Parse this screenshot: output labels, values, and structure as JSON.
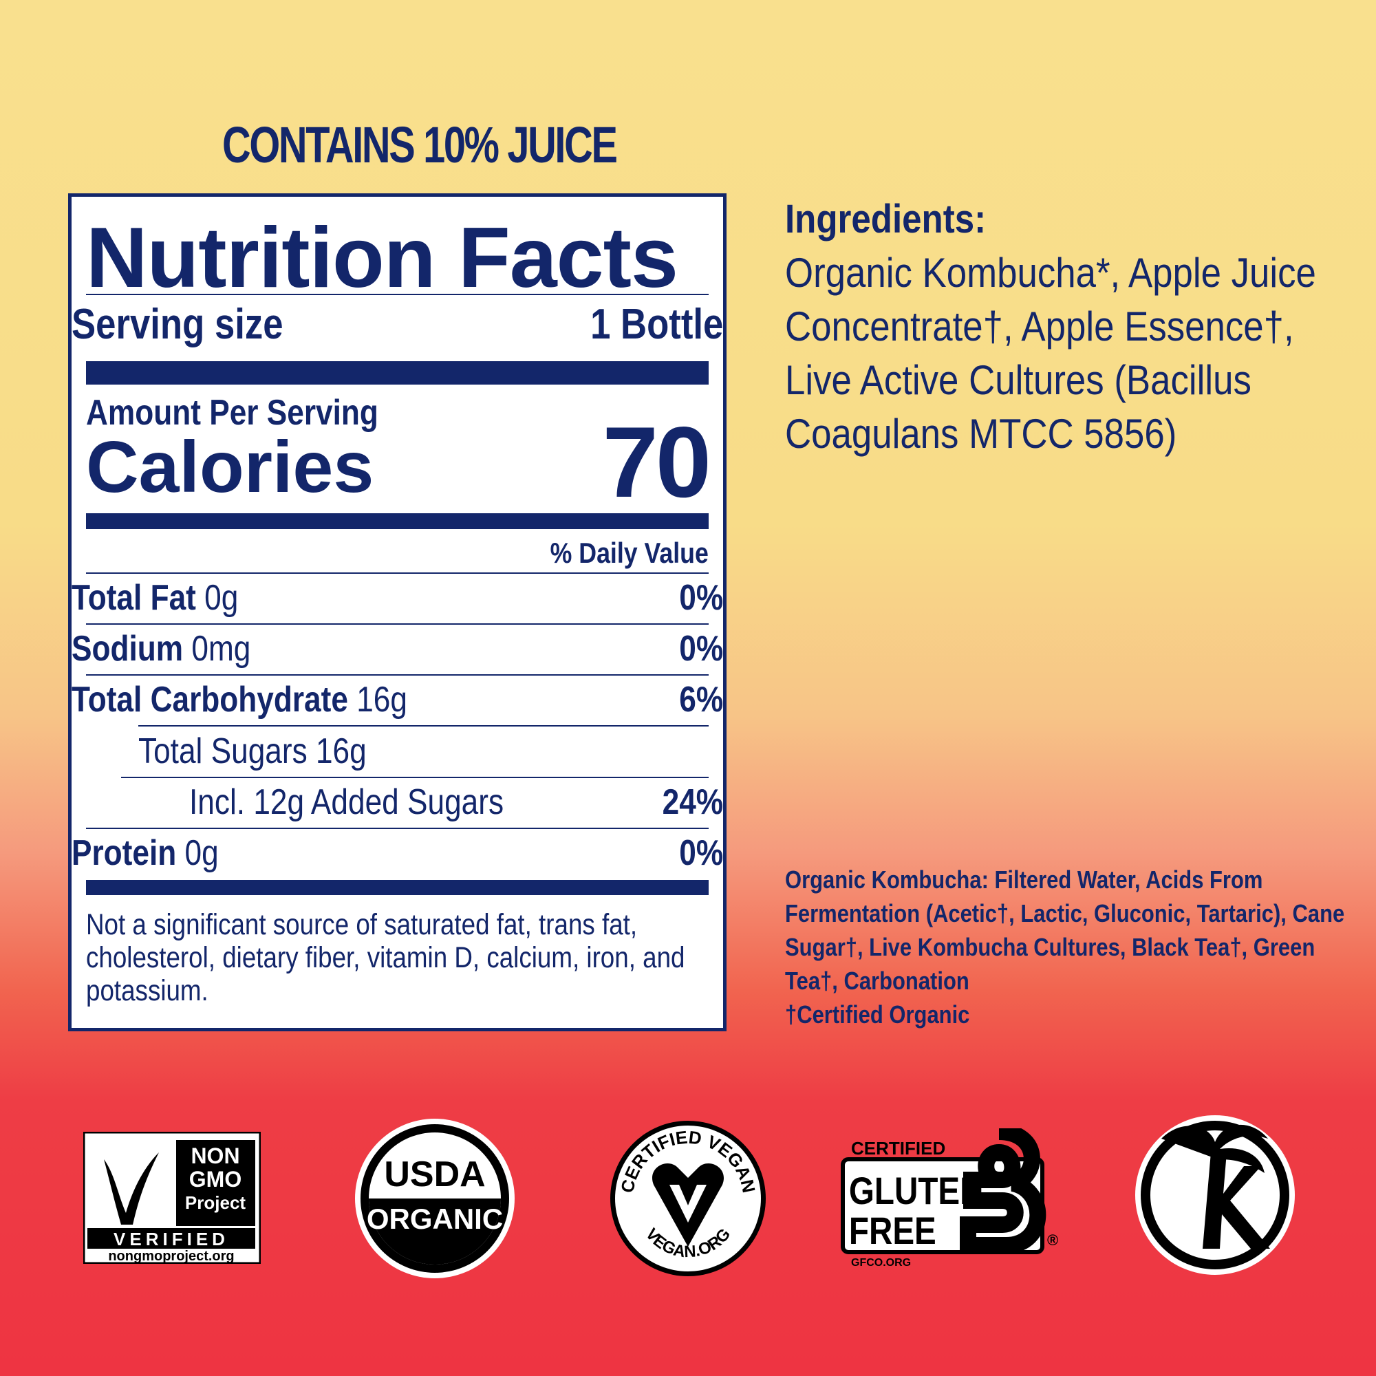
{
  "header": {
    "juice_claim": "CONTAINS 10% JUICE"
  },
  "nutrition": {
    "title": "Nutrition Facts",
    "serving_size_label": "Serving size",
    "serving_size_value": "1 Bottle",
    "amount_per_serving": "Amount Per Serving",
    "calories_label": "Calories",
    "calories_value": "70",
    "daily_value_header": "% Daily Value",
    "rows": [
      {
        "label": "Total Fat",
        "amount": "0g",
        "dv": "0%"
      },
      {
        "label": "Sodium",
        "amount": "0mg",
        "dv": "0%"
      },
      {
        "label": "Total Carbohydrate",
        "amount": "16g",
        "dv": "6%"
      },
      {
        "label": "Total Sugars 16g",
        "amount": "",
        "dv": ""
      },
      {
        "label": "Incl. 12g Added Sugars",
        "amount": "",
        "dv": "24%"
      },
      {
        "label": "Protein",
        "amount": "0g",
        "dv": "0%"
      }
    ],
    "footnote": "Not a significant source of saturated fat, trans fat, cholesterol, dietary fiber, vitamin D, calcium, iron, and potassium."
  },
  "ingredients": {
    "heading": "Ingredients:",
    "body": "Organic Kombucha*, Apple Juice Concentrate†, Apple Essence†, Live Active Cultures (Bacillus Coagulans MTCC 5856)",
    "sub_body": "Organic Kombucha: Filtered Water, Acids From Fermentation (Acetic†, Lactic, Gluconic, Tartaric), Cane Sugar†, Live Kombucha Cultures, Black Tea†, Green Tea†, Carbonation",
    "certified_note": "†Certified Organic"
  },
  "badges": {
    "nongmo": {
      "line1": "NON",
      "line2": "GMO",
      "line3": "Project",
      "verified": "VERIFIED",
      "url": "nongmoproject.org"
    },
    "usda": {
      "top": "USDA",
      "bottom": "ORGANIC"
    },
    "vegan": {
      "top": "CERTIFIED VEGAN",
      "bottom": "VEGAN.ORG"
    },
    "gluten": {
      "certified": "CERTIFIED",
      "line1": "GLUTEN",
      "line2": "FREE",
      "url": "GFCO.ORG"
    },
    "kosher": {
      "icon": "kosher-palm-k-icon"
    }
  },
  "colors": {
    "navy": "#13266a",
    "yellow": "#f9e08e",
    "red": "#ee3442"
  }
}
